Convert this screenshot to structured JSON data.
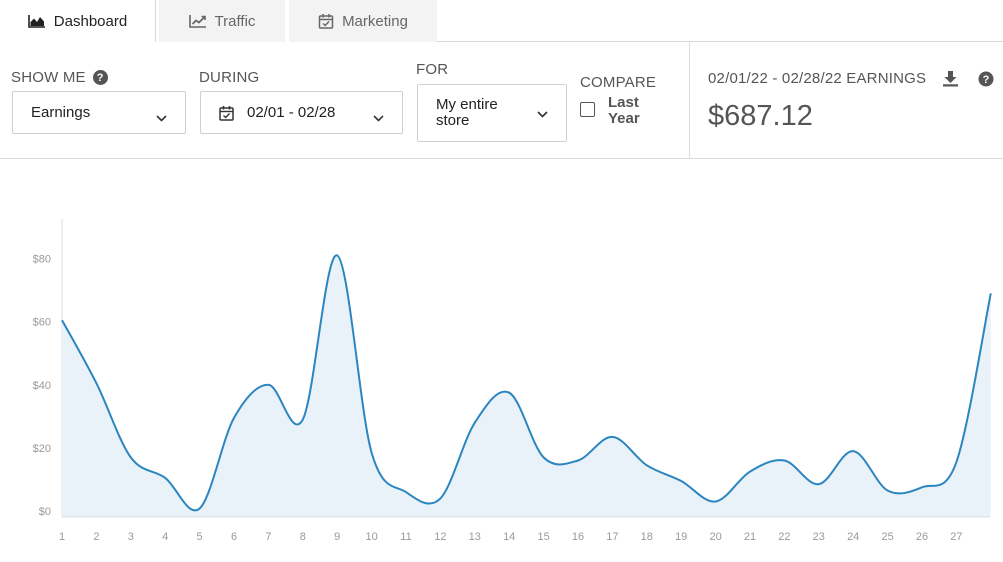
{
  "tabs": [
    {
      "label": "Dashboard",
      "icon": "area-chart-icon",
      "active": true
    },
    {
      "label": "Traffic",
      "icon": "line-chart-icon",
      "active": false
    },
    {
      "label": "Marketing",
      "icon": "calendar-check-icon",
      "active": false
    }
  ],
  "filters": {
    "show_me": {
      "label": "SHOW ME",
      "value": "Earnings"
    },
    "during": {
      "label": "DURING",
      "value": "02/01 - 02/28"
    },
    "for": {
      "label": "FOR",
      "value_line1": "My entire",
      "value_line2": "store"
    },
    "compare": {
      "label": "COMPARE",
      "option_line1": "Last",
      "option_line2": "Year",
      "checked": false
    }
  },
  "earnings": {
    "title": "02/01/22 - 02/28/22 EARNINGS",
    "value": "$687.12"
  },
  "colors": {
    "line": "#2b86c0",
    "fill": "#e9f2f9",
    "tick": "#999999",
    "axis": "#dddddd"
  },
  "chart_data": {
    "type": "area",
    "x_ticks": [
      "1",
      "2",
      "3",
      "4",
      "5",
      "6",
      "7",
      "8",
      "9",
      "10",
      "11",
      "12",
      "13",
      "14",
      "15",
      "16",
      "17",
      "18",
      "19",
      "20",
      "21",
      "22",
      "23",
      "24",
      "25",
      "26",
      "27"
    ],
    "x": [
      1,
      2,
      3,
      4,
      5,
      6,
      7,
      8,
      9,
      10,
      11,
      12,
      13,
      14,
      15,
      16,
      17,
      18,
      19,
      20,
      21,
      22,
      23,
      24,
      25,
      26,
      27,
      28
    ],
    "values": [
      60.5,
      40.5,
      17,
      10.5,
      0.8,
      29.5,
      40,
      29,
      81,
      18.5,
      6,
      4,
      28,
      37.5,
      17,
      16,
      23.5,
      14.5,
      9.5,
      3,
      12.5,
      16,
      8.5,
      19,
      6.5,
      7.5,
      15.5,
      69
    ],
    "y_ticks": [
      "$0",
      "$20",
      "$40",
      "$60",
      "$80"
    ],
    "y_tick_values": [
      0,
      20,
      40,
      60,
      80
    ],
    "ylim": [
      0,
      95
    ],
    "title": "",
    "xlabel": "",
    "ylabel": "",
    "grid": false
  }
}
